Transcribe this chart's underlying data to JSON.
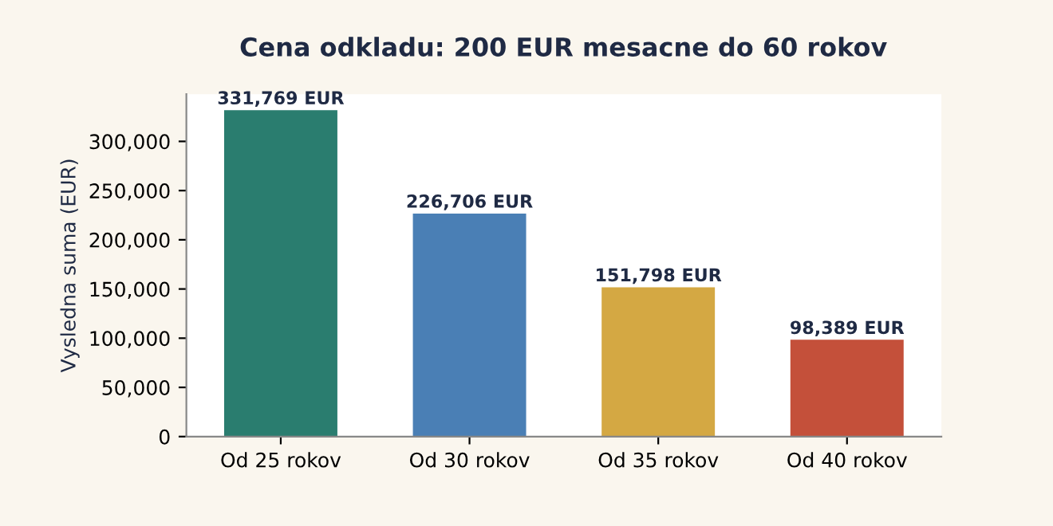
{
  "chart_data": {
    "type": "bar",
    "title": "Cena odkladu: 200 EUR mesacne do 60 rokov",
    "ylabel": "Vysledna suma (EUR)",
    "categories": [
      "Od 25 rokov",
      "Od 30 rokov",
      "Od 35 rokov",
      "Od 40 rokov"
    ],
    "values": [
      331769,
      226706,
      151798,
      98389
    ],
    "colors": [
      "#2a7d6f",
      "#4a7fb5",
      "#d4a843",
      "#c4503a"
    ],
    "value_labels": [
      "331,769 EUR",
      "226,706 EUR",
      "151,798 EUR",
      "98,389 EUR"
    ],
    "ylim": [
      0,
      348000
    ],
    "yticks": [
      0,
      {
        "value": 50000,
        "label": "50,000"
      },
      {
        "value": 100000,
        "label": "100,000"
      },
      {
        "value": 150000,
        "label": "150,000"
      },
      {
        "value": 200000,
        "label": "200,000"
      },
      {
        "value": 250000,
        "label": "250,000"
      },
      {
        "value": 300000,
        "label": "300,000"
      }
    ],
    "grid": false,
    "legend": false
  }
}
